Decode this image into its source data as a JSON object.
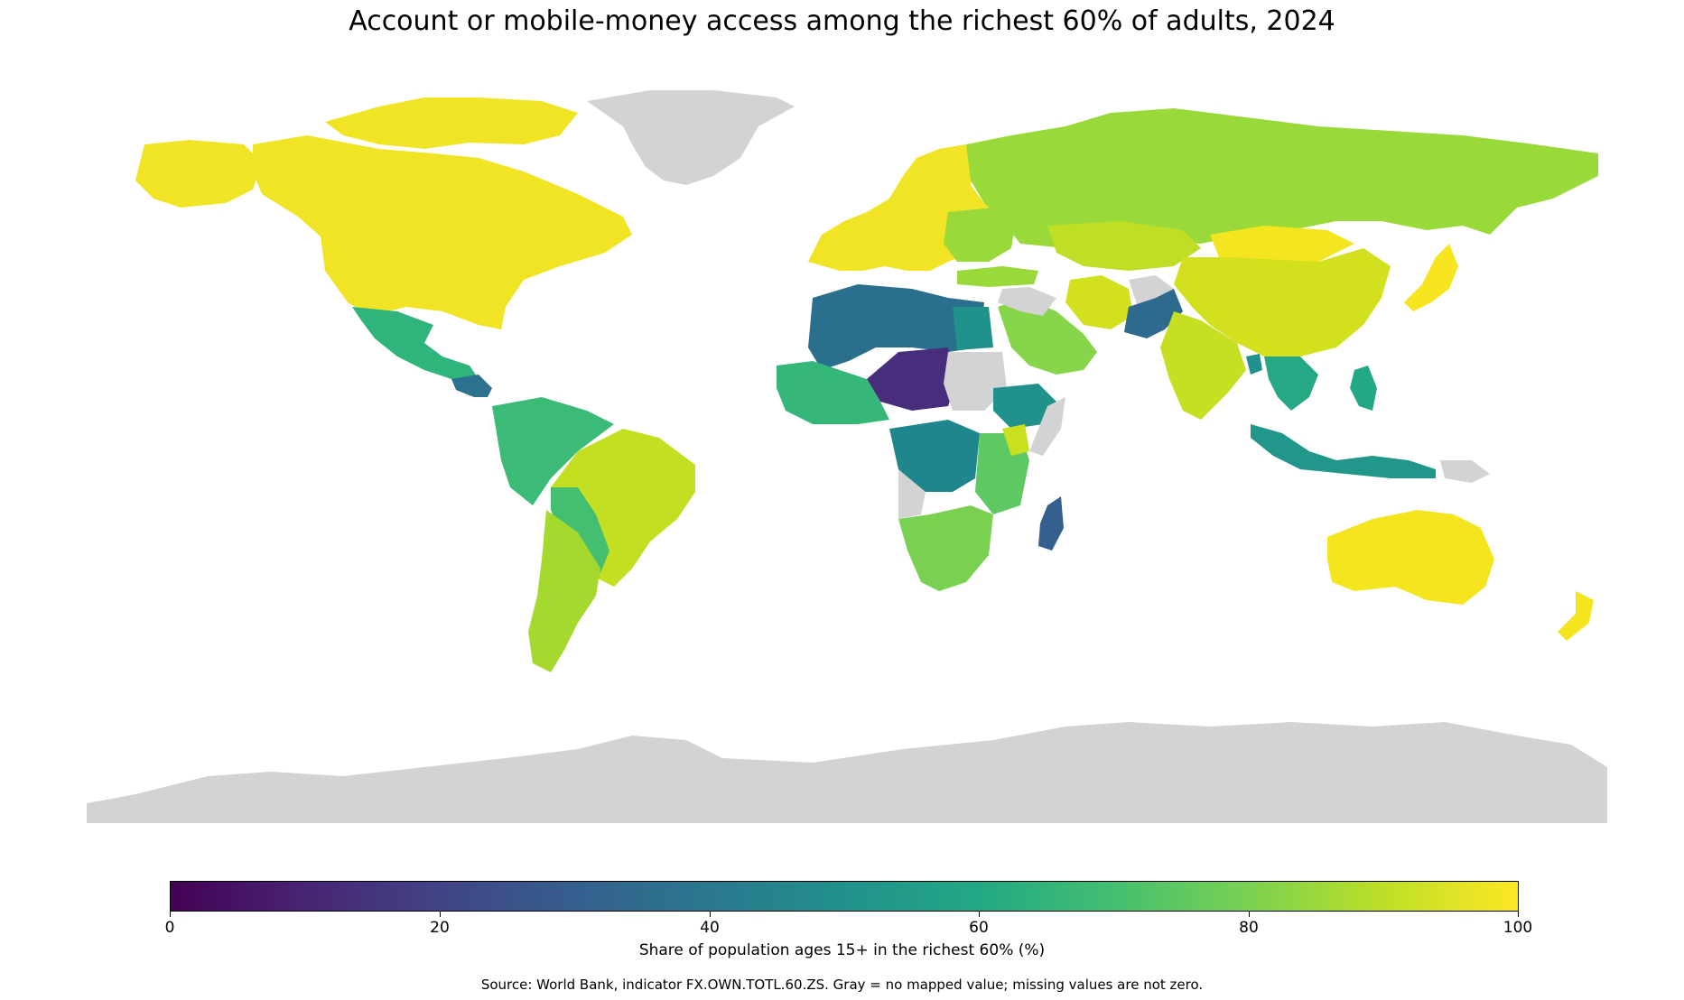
{
  "title": "Account or mobile-money access among the richest 60% of adults, 2024",
  "colorbar": {
    "label": "Share of population ages 15+ in the richest 60% (%)",
    "ticks": [
      "0",
      "20",
      "40",
      "60",
      "80",
      "100"
    ],
    "range": [
      0,
      100
    ],
    "colormap": "viridis"
  },
  "source": "Source: World Bank, indicator FX.OWN.TOTL.60.ZS. Gray = no mapped value; missing values are not zero.",
  "colors": {
    "no_data": "#d3d3d3",
    "low": "#440154",
    "high": "#fde725"
  },
  "regions": [
    {
      "name": "North America",
      "value": 97
    },
    {
      "name": "Mexico",
      "value": 63
    },
    {
      "name": "Central America",
      "value": 55
    },
    {
      "name": "South America (north)",
      "value": 68
    },
    {
      "name": "Brazil",
      "value": 88
    },
    {
      "name": "Argentina / Chile",
      "value": 85
    },
    {
      "name": "Europe",
      "value": 96
    },
    {
      "name": "Russia",
      "value": 83
    },
    {
      "name": "North Africa",
      "value": 35
    },
    {
      "name": "Sahel",
      "value": 15
    },
    {
      "name": "West Africa",
      "value": 62
    },
    {
      "name": "Central Africa",
      "value": 50
    },
    {
      "name": "East Africa",
      "value": 70
    },
    {
      "name": "Southern Africa",
      "value": 78
    },
    {
      "name": "Madagascar",
      "value": 32
    },
    {
      "name": "Middle East",
      "value": 77
    },
    {
      "name": "Iran",
      "value": 90
    },
    {
      "name": "Pakistan / Afghanistan region",
      "value": 35
    },
    {
      "name": "India",
      "value": 88
    },
    {
      "name": "China",
      "value": 91
    },
    {
      "name": "Mongolia",
      "value": 95
    },
    {
      "name": "Japan",
      "value": 99
    },
    {
      "name": "Southeast Asia",
      "value": 65
    },
    {
      "name": "Indonesia",
      "value": 56
    },
    {
      "name": "Australia",
      "value": 98
    },
    {
      "name": "New Zealand",
      "value": 99
    }
  ]
}
